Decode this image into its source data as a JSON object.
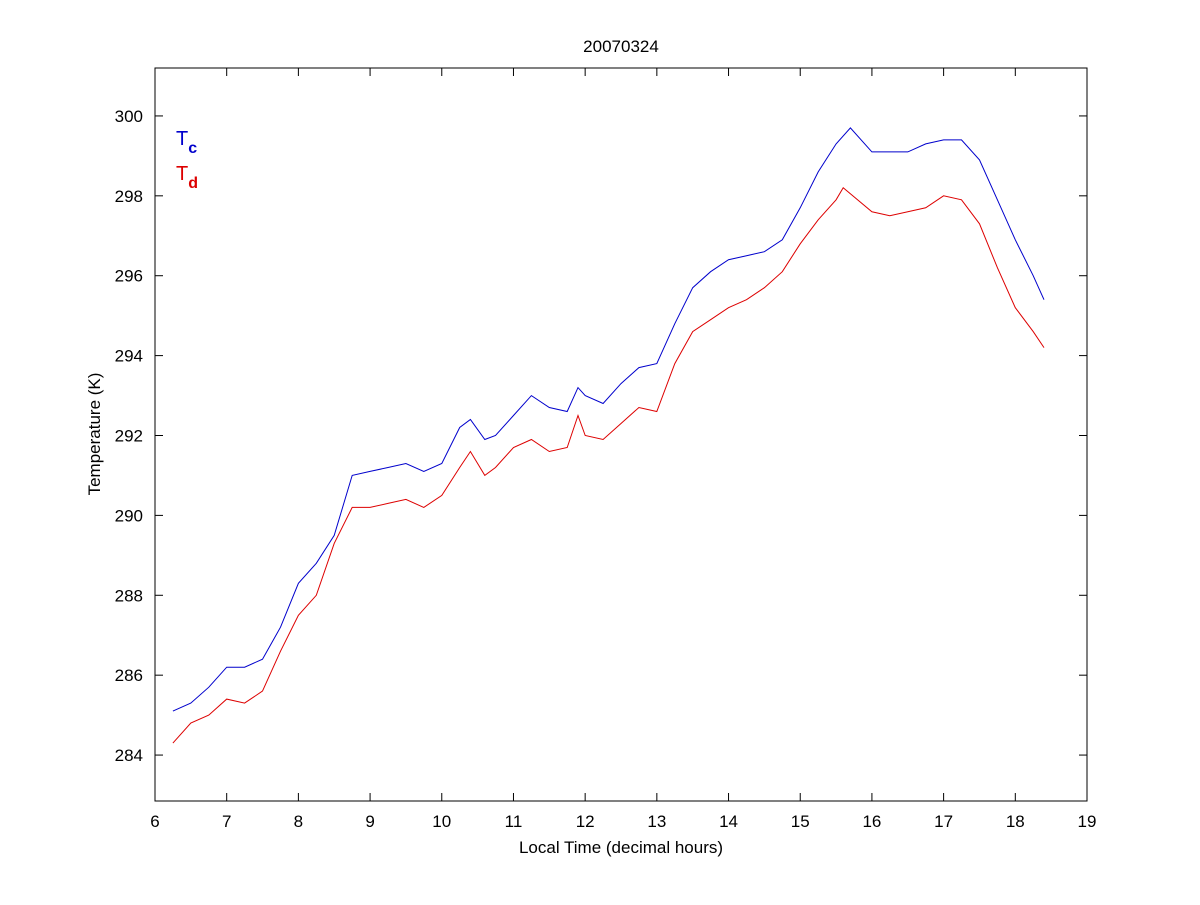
{
  "chart_data": {
    "type": "line",
    "title": "20070324",
    "xlabel": "Local Time (decimal hours)",
    "ylabel": "Temperature (K)",
    "xlim": [
      6,
      19
    ],
    "ylim": [
      282.85,
      301.2
    ],
    "xticks": [
      6,
      7,
      8,
      9,
      10,
      11,
      12,
      13,
      14,
      15,
      16,
      17,
      18,
      19
    ],
    "yticks": [
      284,
      286,
      288,
      290,
      292,
      294,
      296,
      298,
      300
    ],
    "grid": false,
    "legend_placement": "top-left",
    "series": [
      {
        "name": "Tc",
        "label_main": "T",
        "label_sub": "c",
        "color": "#0000cc",
        "x": [
          6.25,
          6.5,
          6.75,
          7.0,
          7.25,
          7.5,
          7.75,
          8.0,
          8.25,
          8.5,
          8.75,
          9.0,
          9.25,
          9.5,
          9.75,
          10.0,
          10.25,
          10.4,
          10.6,
          10.75,
          11.0,
          11.25,
          11.5,
          11.75,
          11.9,
          12.0,
          12.25,
          12.5,
          12.75,
          13.0,
          13.25,
          13.5,
          13.75,
          14.0,
          14.25,
          14.5,
          14.75,
          15.0,
          15.25,
          15.5,
          15.7,
          16.0,
          16.25,
          16.5,
          16.75,
          17.0,
          17.25,
          17.5,
          17.75,
          18.0,
          18.25,
          18.4
        ],
        "y": [
          285.1,
          285.3,
          285.7,
          286.2,
          286.2,
          286.4,
          287.2,
          288.3,
          288.8,
          289.5,
          291.0,
          291.1,
          291.2,
          291.3,
          291.1,
          291.3,
          292.2,
          292.4,
          291.9,
          292.0,
          292.5,
          293.0,
          292.7,
          292.6,
          293.2,
          293.0,
          292.8,
          293.3,
          293.7,
          293.8,
          294.8,
          295.7,
          296.1,
          296.4,
          296.5,
          296.6,
          296.9,
          297.7,
          298.6,
          299.3,
          299.7,
          299.1,
          299.1,
          299.1,
          299.3,
          299.4,
          299.4,
          298.9,
          297.9,
          296.9,
          296.0,
          295.4
        ]
      },
      {
        "name": "Td",
        "label_main": "T",
        "label_sub": "d",
        "color": "#dd0000",
        "x": [
          6.25,
          6.5,
          6.75,
          7.0,
          7.25,
          7.5,
          7.75,
          8.0,
          8.25,
          8.5,
          8.75,
          9.0,
          9.25,
          9.5,
          9.75,
          10.0,
          10.25,
          10.4,
          10.6,
          10.75,
          11.0,
          11.25,
          11.5,
          11.75,
          11.9,
          12.0,
          12.25,
          12.5,
          12.75,
          13.0,
          13.25,
          13.5,
          13.75,
          14.0,
          14.25,
          14.5,
          14.75,
          15.0,
          15.25,
          15.5,
          15.6,
          16.0,
          16.25,
          16.5,
          16.75,
          17.0,
          17.25,
          17.5,
          17.75,
          18.0,
          18.25,
          18.4
        ],
        "y": [
          284.3,
          284.8,
          285.0,
          285.4,
          285.3,
          285.6,
          286.6,
          287.5,
          288.0,
          289.3,
          290.2,
          290.2,
          290.3,
          290.4,
          290.2,
          290.5,
          291.2,
          291.6,
          291.0,
          291.2,
          291.7,
          291.9,
          291.6,
          291.7,
          292.5,
          292.0,
          291.9,
          292.3,
          292.7,
          292.6,
          293.8,
          294.6,
          294.9,
          295.2,
          295.4,
          295.7,
          296.1,
          296.8,
          297.4,
          297.9,
          298.2,
          297.6,
          297.5,
          297.6,
          297.7,
          298.0,
          297.9,
          297.3,
          296.2,
          295.2,
          294.6,
          294.2
        ]
      }
    ]
  }
}
